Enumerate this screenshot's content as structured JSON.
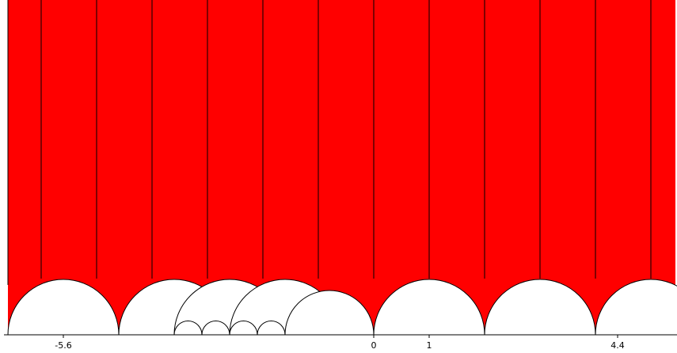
{
  "diagram": {
    "fill_color": "#ff0000",
    "line_color": "#000000",
    "background": "#ffffff",
    "x_range": [
      -6.2,
      5.5
    ],
    "width_unit": 1,
    "strips": [
      -6.0,
      -5.0,
      -4.0,
      -3.0,
      -2.0,
      -1.0,
      0.0,
      1.0,
      2.0,
      3.0,
      4.0,
      5.0
    ],
    "arcs": [
      {
        "center": -5.6,
        "radius": 1.0
      },
      {
        "center": -3.6,
        "radius": 1.0
      },
      {
        "center": -2.6,
        "radius": 1.0
      },
      {
        "center": -1.6,
        "radius": 1.0
      },
      {
        "center": -0.8,
        "radius": 0.8
      },
      {
        "center": 1.0,
        "radius": 1.0
      },
      {
        "center": 3.0,
        "radius": 1.0
      },
      {
        "center": 5.0,
        "radius": 1.0
      },
      {
        "center": -3.35,
        "radius": 0.25
      },
      {
        "center": -2.85,
        "radius": 0.25
      },
      {
        "center": -2.35,
        "radius": 0.25
      },
      {
        "center": -1.85,
        "radius": 0.25
      }
    ],
    "ticks": [
      {
        "value": -5.6,
        "label": "-5.6"
      },
      {
        "value": 0,
        "label": "0"
      },
      {
        "value": 1,
        "label": "1"
      },
      {
        "value": 4.4,
        "label": "4.4"
      }
    ]
  }
}
